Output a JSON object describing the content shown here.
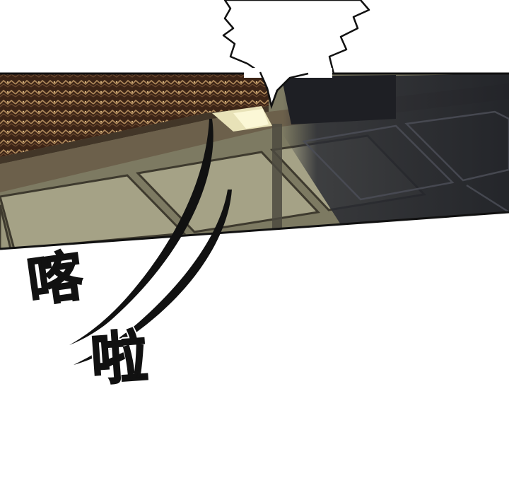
{
  "sound_effects": {
    "first": "喀",
    "second": "啦"
  },
  "colors": {
    "background": "#ffffff",
    "ink": "#111111",
    "carpet": "#4a3020",
    "floor_lit": "#8e8a70",
    "floor_shadow": "#2a2c33"
  },
  "icons": {
    "speech_tail": "jagged-speech-bubble-tail",
    "motion_lines": "swoosh-motion-lines"
  }
}
